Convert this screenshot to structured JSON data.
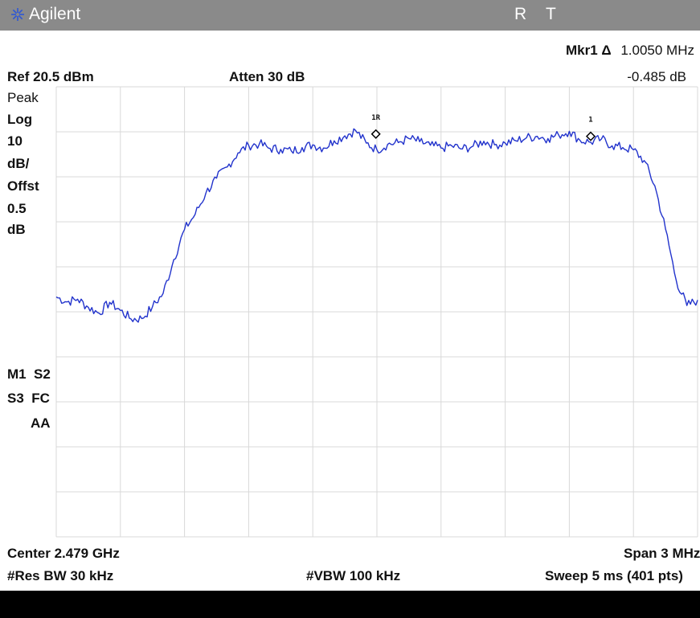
{
  "instrument": {
    "brand": "Agilent",
    "indicator_r": "R",
    "indicator_t": "T"
  },
  "header": {
    "marker_label": "Mkr1 Δ",
    "marker_freq": "1.0050 MHz",
    "marker_level": "-0.485 dB",
    "ref": "Ref 20.5 dBm",
    "atten": "Atten 30 dB"
  },
  "left_panel": {
    "detector": "Peak",
    "scale_type": "Log",
    "scale_value": "10",
    "scale_unit": "dB/",
    "offset_label": "Offst",
    "offset_value": "0.5",
    "offset_unit": "dB",
    "status_row1": "M1  S2",
    "status_row2": "S3  FC",
    "status_row3": "AA"
  },
  "footer": {
    "center": "Center 2.479 GHz",
    "span": "Span 3 MHz",
    "rbw": "#Res BW 30 kHz",
    "vbw": "#VBW 100 kHz",
    "sweep": "Sweep 5 ms (401 pts)"
  },
  "colors": {
    "trace": "#2233cc",
    "grid": "#d8d8d8",
    "title_bar": "#8a8a8a",
    "logo": "#2d57d6"
  },
  "chart_data": {
    "type": "line",
    "x_unit": "MHz",
    "y_unit": "dBm",
    "xlim": [
      2477.5,
      2480.5
    ],
    "ylim": [
      -79.5,
      20.5
    ],
    "grid": true,
    "series": [
      {
        "points": [
          [
            2477.5,
            -26.2
          ],
          [
            2477.55,
            -27.3
          ],
          [
            2477.6,
            -26.7
          ],
          [
            2477.65,
            -28.5
          ],
          [
            2477.7,
            -29.8
          ],
          [
            2477.75,
            -27.4
          ],
          [
            2477.8,
            -29.2
          ],
          [
            2477.85,
            -31.1
          ],
          [
            2477.9,
            -31.0
          ],
          [
            2477.95,
            -28.4
          ],
          [
            2478.0,
            -25.4
          ],
          [
            2478.05,
            -17.9
          ],
          [
            2478.1,
            -11.2
          ],
          [
            2478.15,
            -7.8
          ],
          [
            2478.2,
            -3.1
          ],
          [
            2478.25,
            0.2
          ],
          [
            2478.3,
            2.7
          ],
          [
            2478.35,
            5.8
          ],
          [
            2478.4,
            7.5
          ],
          [
            2478.45,
            7.8
          ],
          [
            2478.5,
            6.8
          ],
          [
            2478.55,
            6.6
          ],
          [
            2478.6,
            6.2
          ],
          [
            2478.65,
            7.0
          ],
          [
            2478.7,
            7.6
          ],
          [
            2478.75,
            6.9
          ],
          [
            2478.8,
            8.5
          ],
          [
            2478.85,
            9.6
          ],
          [
            2478.9,
            10.8
          ],
          [
            2478.95,
            8.0
          ],
          [
            2479.0,
            6.5
          ],
          [
            2479.05,
            7.7
          ],
          [
            2479.1,
            8.1
          ],
          [
            2479.15,
            9.0
          ],
          [
            2479.2,
            8.3
          ],
          [
            2479.25,
            7.5
          ],
          [
            2479.3,
            6.9
          ],
          [
            2479.35,
            7.4
          ],
          [
            2479.4,
            6.7
          ],
          [
            2479.45,
            7.3
          ],
          [
            2479.5,
            8.4
          ],
          [
            2479.55,
            7.6
          ],
          [
            2479.6,
            8.0
          ],
          [
            2479.65,
            8.5
          ],
          [
            2479.7,
            9.2
          ],
          [
            2479.75,
            9.5
          ],
          [
            2479.8,
            9.0
          ],
          [
            2479.85,
            9.8
          ],
          [
            2479.9,
            10.6
          ],
          [
            2479.95,
            8.6
          ],
          [
            2480.0,
            8.2
          ],
          [
            2480.05,
            8.9
          ],
          [
            2480.1,
            7.4
          ],
          [
            2480.15,
            7.0
          ],
          [
            2480.2,
            6.5
          ],
          [
            2480.25,
            4.1
          ],
          [
            2480.3,
            -1.5
          ],
          [
            2480.35,
            -11.1
          ],
          [
            2480.4,
            -22.5
          ],
          [
            2480.45,
            -28.1
          ],
          [
            2480.5,
            -26.9
          ]
        ]
      }
    ],
    "markers": [
      {
        "label": "1R",
        "x": 2478.995,
        "y": 10.0
      },
      {
        "label": "1",
        "x": 2480.0,
        "y": 9.5
      }
    ]
  }
}
